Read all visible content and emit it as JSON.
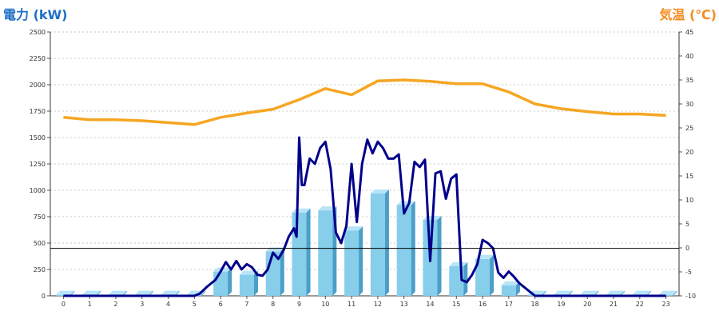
{
  "chart_data": {
    "type": "bar",
    "left_axis_title": "電力 (kW)",
    "right_axis_title": "気温 (℃)",
    "categories": [
      "0",
      "1",
      "2",
      "3",
      "4",
      "5",
      "6",
      "7",
      "8",
      "9",
      "10",
      "11",
      "12",
      "13",
      "14",
      "15",
      "16",
      "17",
      "18",
      "19",
      "20",
      "21",
      "22",
      "23"
    ],
    "left_axis": {
      "ylim": [
        0,
        2500
      ],
      "ticks": [
        "0",
        "250",
        "500",
        "750",
        "1000",
        "1250",
        "1500",
        "1750",
        "2000",
        "2250",
        "2500"
      ]
    },
    "right_axis": {
      "ylim": [
        -10,
        45
      ],
      "ticks": [
        "-10",
        "-5",
        "0",
        "5",
        "10",
        "15",
        "20",
        "25",
        "30",
        "35",
        "40",
        "45"
      ]
    },
    "grid": true,
    "series": [
      {
        "kind": "bar",
        "axis": "left",
        "color": "#87ceeb",
        "values": [
          10,
          10,
          10,
          10,
          10,
          10,
          230,
          200,
          420,
          790,
          810,
          620,
          970,
          860,
          720,
          280,
          350,
          100,
          10,
          10,
          10,
          10,
          10,
          10
        ]
      },
      {
        "kind": "line",
        "axis": "right",
        "color": "#f5a623",
        "values": [
          27.2,
          26.7,
          26.7,
          26.5,
          26.1,
          25.7,
          27.2,
          28.1,
          28.9,
          30.9,
          33.2,
          31.9,
          34.8,
          35,
          34.7,
          34.2,
          34.2,
          32.5,
          30,
          29,
          28.4,
          27.9,
          27.9,
          27.6
        ]
      },
      {
        "kind": "line",
        "axis": "left",
        "color": "#00008b",
        "x": [
          0,
          1,
          2,
          3,
          4,
          5,
          5.2,
          5.5,
          5.8,
          6.0,
          6.2,
          6.4,
          6.6,
          6.8,
          7.0,
          7.2,
          7.4,
          7.6,
          7.8,
          8.0,
          8.2,
          8.4,
          8.6,
          8.8,
          8.9,
          9.0,
          9.1,
          9.2,
          9.4,
          9.6,
          9.8,
          10.0,
          10.2,
          10.4,
          10.6,
          10.8,
          11.0,
          11.2,
          11.4,
          11.6,
          11.8,
          12.0,
          12.2,
          12.4,
          12.6,
          12.8,
          13.0,
          13.2,
          13.4,
          13.6,
          13.8,
          14.0,
          14.2,
          14.4,
          14.6,
          14.8,
          15.0,
          15.2,
          15.4,
          15.6,
          15.8,
          16.0,
          16.2,
          16.4,
          16.6,
          16.8,
          17.0,
          17.2,
          17.4,
          18,
          19,
          20,
          21,
          22,
          23
        ],
        "y": [
          0,
          0,
          0,
          0,
          0,
          0,
          20,
          90,
          150,
          230,
          320,
          250,
          330,
          250,
          300,
          270,
          200,
          190,
          250,
          410,
          350,
          430,
          560,
          640,
          560,
          1500,
          1050,
          1050,
          1300,
          1250,
          1400,
          1460,
          1200,
          600,
          500,
          660,
          1250,
          700,
          1250,
          1480,
          1350,
          1460,
          1400,
          1300,
          1300,
          1340,
          780,
          880,
          1270,
          1220,
          1290,
          330,
          1160,
          1180,
          920,
          1110,
          1150,
          150,
          130,
          200,
          300,
          530,
          500,
          450,
          220,
          170,
          230,
          180,
          120,
          0,
          0,
          0,
          0,
          0,
          0
        ]
      }
    ],
    "reference_line": {
      "axis": "left",
      "value": 450
    }
  }
}
